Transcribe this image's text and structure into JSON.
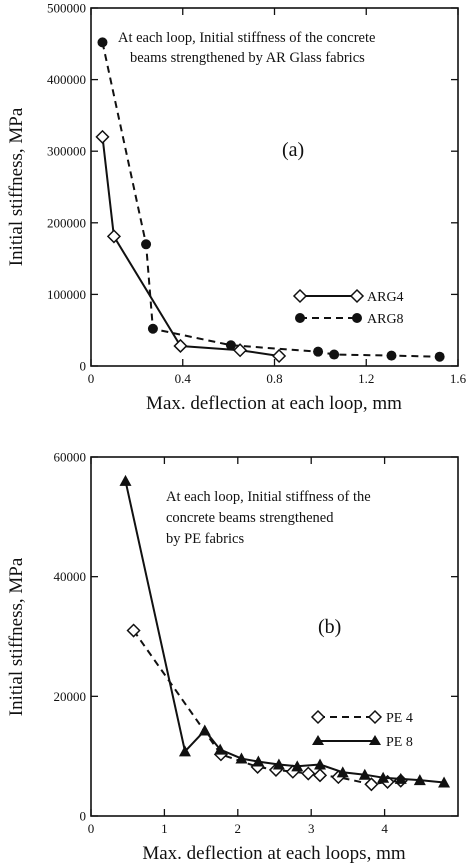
{
  "chart_data": [
    {
      "type": "line",
      "panel_label": "(a)",
      "annotation": [
        "At each loop, Initial stiffness of the concrete",
        "beams strengthened by AR Glass fabrics"
      ],
      "xlabel": "Max.  deflection at each loop, mm",
      "ylabel": "Initial stiffness, MPa",
      "xlim": [
        0,
        1.6
      ],
      "ylim": [
        0,
        500000
      ],
      "xticks": [
        0,
        0.4,
        0.8,
        1.2,
        1.6
      ],
      "xtick_labels": [
        "0",
        "0.4",
        "0.8",
        "1.2",
        "1.6"
      ],
      "yticks": [
        0,
        100000,
        200000,
        300000,
        400000,
        500000
      ],
      "ytick_labels": [
        "0",
        "100000",
        "200000",
        "300000",
        "400000",
        "500000"
      ],
      "grid": false,
      "legend_position": "center-right",
      "series": [
        {
          "name": "ARG4",
          "line_style": "solid",
          "marker": "diamond-open",
          "x": [
            0.05,
            0.1,
            0.39,
            0.65,
            0.82
          ],
          "y": [
            320000,
            181000,
            28000,
            22000,
            14000
          ]
        },
        {
          "name": "ARG8",
          "line_style": "dashed",
          "marker": "circle-filled",
          "x": [
            0.05,
            0.24,
            0.27,
            0.61,
            0.99,
            1.06,
            1.31,
            1.52
          ],
          "y": [
            452000,
            170000,
            52000,
            29000,
            20000,
            16000,
            14500,
            13000
          ]
        }
      ]
    },
    {
      "type": "line",
      "panel_label": "(b)",
      "annotation": [
        "At each loop, Initial stiffness of the",
        "concrete beams strengthened",
        "by PE fabrics"
      ],
      "xlabel": "Max.  deflection at each loops, mm",
      "ylabel": "Initial stiffness, MPa",
      "xlim": [
        0,
        5
      ],
      "ylim": [
        0,
        60000
      ],
      "xticks": [
        0,
        1,
        2,
        3,
        4
      ],
      "xtick_labels": [
        "0",
        "1",
        "2",
        "3",
        "4"
      ],
      "yticks": [
        0,
        20000,
        40000,
        60000
      ],
      "ytick_labels": [
        "0",
        "20000",
        "40000",
        "60000"
      ],
      "grid": false,
      "legend_position": "bottom-right",
      "series": [
        {
          "name": "PE 4",
          "line_style": "dashed",
          "marker": "diamond-open",
          "x": [
            0.58,
            1.77,
            2.27,
            2.52,
            2.75,
            2.96,
            3.12,
            3.37,
            3.82,
            4.04,
            4.22
          ],
          "y": [
            31000,
            10300,
            8200,
            7700,
            7400,
            7100,
            6800,
            6500,
            5300,
            5700,
            5900
          ]
        },
        {
          "name": "PE 8",
          "line_style": "solid",
          "marker": "triangle-filled",
          "x": [
            0.47,
            1.28,
            1.55,
            1.76,
            2.05,
            2.28,
            2.56,
            2.81,
            3.12,
            3.43,
            3.73,
            3.98,
            4.22,
            4.48,
            4.81
          ],
          "y": [
            56000,
            10800,
            14300,
            11100,
            9600,
            9100,
            8600,
            8300,
            8600,
            7300,
            6900,
            6400,
            6200,
            6000,
            5600
          ]
        }
      ]
    }
  ]
}
